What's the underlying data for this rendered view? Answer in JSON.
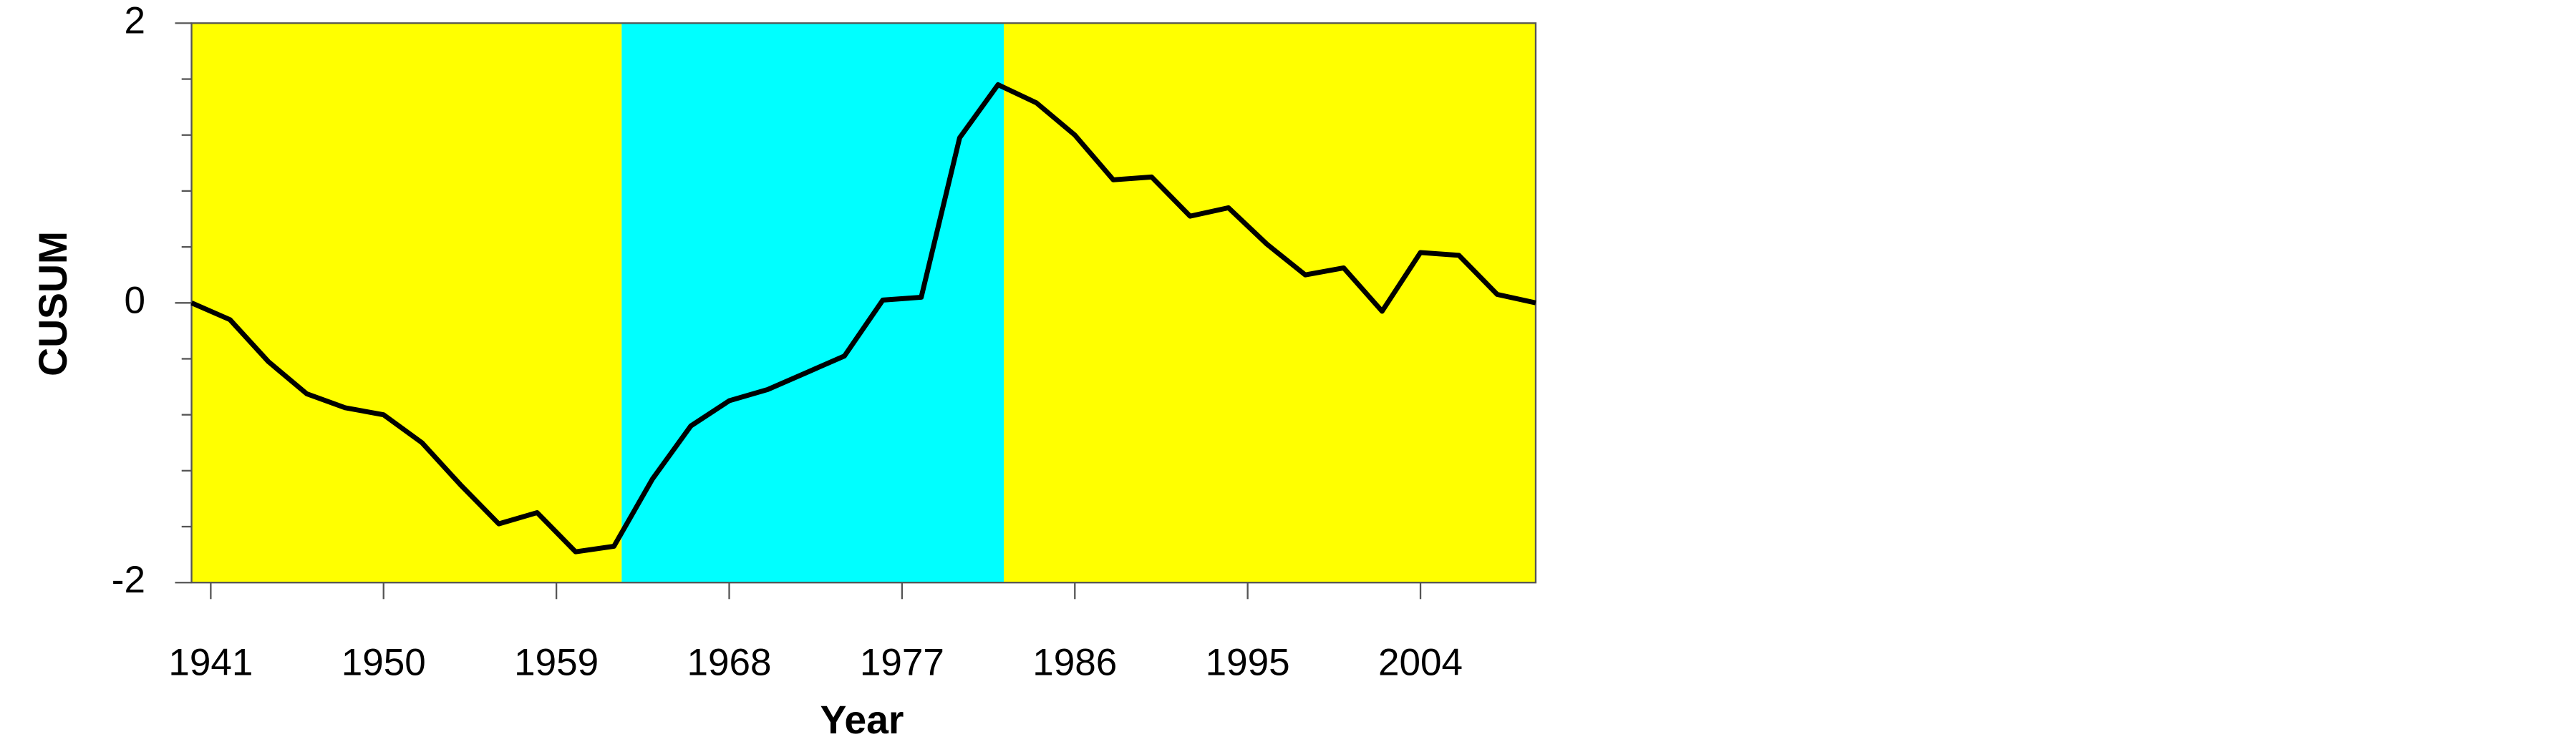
{
  "chart_data": {
    "type": "line",
    "x_label": "Year",
    "y_label": "CUSUM",
    "x": [
      1940,
      1942,
      1944,
      1946,
      1948,
      1950,
      1952,
      1954,
      1956,
      1958,
      1960,
      1962,
      1964,
      1966,
      1968,
      1970,
      1972,
      1974,
      1976,
      1978,
      1980,
      1982,
      1984,
      1986,
      1988,
      1990,
      1992,
      1994,
      1996,
      1998,
      2000,
      2002,
      2004,
      2006,
      2008,
      2010
    ],
    "series": [
      {
        "name": "CUSUM",
        "color": "#000000",
        "values": [
          0,
          -0.12,
          -0.42,
          -0.65,
          -0.75,
          -0.8,
          -1.0,
          -1.3,
          -1.58,
          -1.5,
          -1.78,
          -1.74,
          -1.26,
          -0.88,
          -0.7,
          -0.62,
          -0.5,
          -0.38,
          0.02,
          0.04,
          1.18,
          1.56,
          1.43,
          1.2,
          0.88,
          0.9,
          0.62,
          0.68,
          0.42,
          0.2,
          0.25,
          -0.06,
          0.36,
          0.34,
          0.06,
          0
        ]
      }
    ],
    "regions": [
      {
        "from": 1940,
        "to": 1962.4,
        "color": "#ffff00"
      },
      {
        "from": 1962.4,
        "to": 1982.3,
        "color": "#00ffff"
      },
      {
        "from": 1982.3,
        "to": 2010,
        "color": "#ffff00"
      }
    ],
    "xlim": [
      1940,
      2010
    ],
    "xticks": [
      1941,
      1950,
      1959,
      1968,
      1977,
      1986,
      1995,
      2004
    ],
    "ylim": [
      -2,
      2
    ],
    "yticks": [
      -2,
      0,
      2
    ],
    "yminor_ticks": [
      -1.6,
      -1.2,
      -0.8,
      -0.4,
      0.4,
      0.8,
      1.2,
      1.6
    ]
  }
}
